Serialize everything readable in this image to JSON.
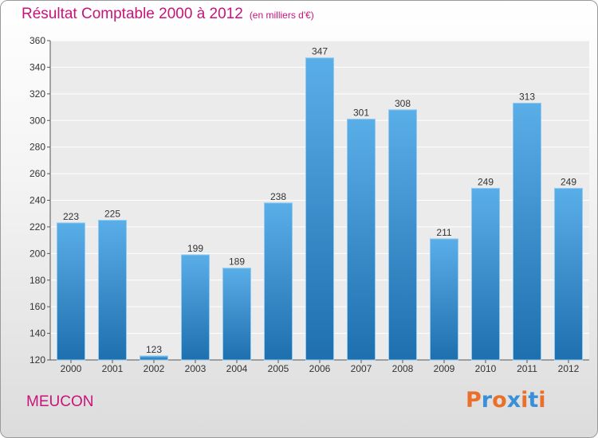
{
  "header": {
    "title": "Résultat Comptable 2000 à 2012",
    "unit": "(en milliers d'€)"
  },
  "footer": {
    "place": "MEUCON",
    "logo_text": "Proxiti"
  },
  "colors": {
    "accent": "#c8147a",
    "bar_light": "#5aaee8",
    "bar_dark": "#1e6fae",
    "logo": [
      "#e8702a",
      "#3a8fd8",
      "#e8702a",
      "#3a8fd8",
      "#e8702a",
      "#3a8fd8",
      "#e8702a"
    ]
  },
  "chart_data": {
    "type": "bar",
    "title": "Résultat Comptable 2000 à 2012",
    "subtitle": "(en milliers d'€)",
    "categories": [
      "2000",
      "2001",
      "2002",
      "2003",
      "2004",
      "2005",
      "2006",
      "2007",
      "2008",
      "2009",
      "2010",
      "2011",
      "2012"
    ],
    "values": [
      223,
      225,
      123,
      199,
      189,
      238,
      347,
      301,
      308,
      211,
      249,
      313,
      249
    ],
    "ylim": [
      120,
      360
    ],
    "yticks": [
      120,
      140,
      160,
      180,
      200,
      220,
      240,
      260,
      280,
      300,
      320,
      340,
      360
    ],
    "grid": true,
    "xlabel": "",
    "ylabel": ""
  }
}
